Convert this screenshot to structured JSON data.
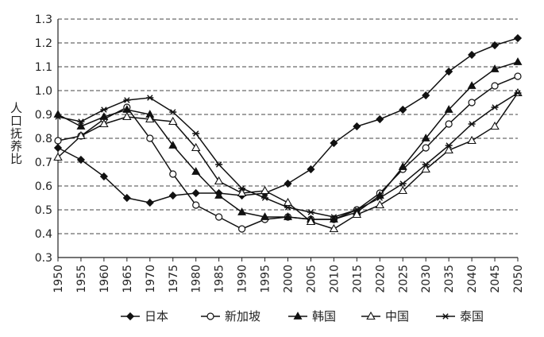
{
  "chart_data": {
    "type": "line",
    "title": "",
    "xlabel": "",
    "ylabel": "人口抚养比",
    "xlim": [
      1950,
      2050
    ],
    "ylim": [
      0.3,
      1.3
    ],
    "y_ticks": [
      "0.3",
      "0.4",
      "0.5",
      "0.6",
      "0.7",
      "0.8",
      "0.9",
      "1.0",
      "1.1",
      "1.2",
      "1.3"
    ],
    "x": [
      1950,
      1955,
      1960,
      1965,
      1970,
      1975,
      1980,
      1985,
      1990,
      1995,
      2000,
      2005,
      2010,
      2015,
      2020,
      2025,
      2030,
      2035,
      2040,
      2045,
      2050
    ],
    "grid": "horizontal dashed",
    "legend_position": "bottom",
    "series": [
      {
        "name": "日本",
        "marker": "filled-diamond",
        "values": [
          0.76,
          0.71,
          0.64,
          0.55,
          0.53,
          0.56,
          0.57,
          0.57,
          0.56,
          0.57,
          0.61,
          0.67,
          0.78,
          0.85,
          0.88,
          0.92,
          0.98,
          1.08,
          1.15,
          1.19,
          1.22
        ]
      },
      {
        "name": "新加坡",
        "marker": "open-circle",
        "values": [
          0.79,
          0.81,
          0.88,
          0.93,
          0.8,
          0.65,
          0.52,
          0.47,
          0.42,
          0.46,
          0.47,
          0.46,
          0.46,
          0.5,
          0.57,
          0.67,
          0.76,
          0.86,
          0.95,
          1.02,
          1.06
        ]
      },
      {
        "name": "韩国",
        "marker": "filled-triangle",
        "values": [
          0.9,
          0.85,
          0.89,
          0.92,
          0.9,
          0.77,
          0.66,
          0.56,
          0.49,
          0.47,
          0.47,
          0.46,
          0.46,
          0.49,
          0.56,
          0.68,
          0.8,
          0.92,
          1.02,
          1.09,
          1.12
        ]
      },
      {
        "name": "中国",
        "marker": "open-triangle",
        "values": [
          0.72,
          0.81,
          0.86,
          0.89,
          0.88,
          0.87,
          0.76,
          0.62,
          0.57,
          0.58,
          0.53,
          0.45,
          0.42,
          0.48,
          0.52,
          0.58,
          0.67,
          0.75,
          0.79,
          0.85,
          0.99
        ]
      },
      {
        "name": "泰国",
        "marker": "asterisk",
        "values": [
          0.89,
          0.87,
          0.92,
          0.96,
          0.97,
          0.91,
          0.82,
          0.69,
          0.59,
          0.55,
          0.51,
          0.49,
          0.47,
          0.5,
          0.55,
          0.61,
          0.69,
          0.77,
          0.86,
          0.93,
          0.99
        ]
      }
    ]
  }
}
